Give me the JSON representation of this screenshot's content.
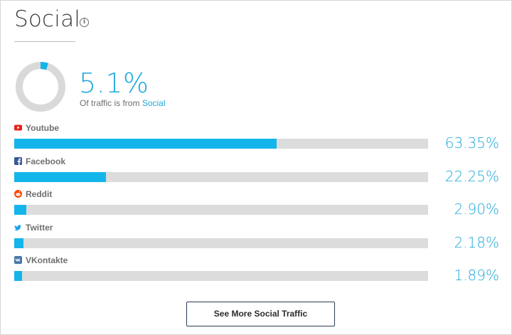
{
  "widget": {
    "title": "Social",
    "info_icon": "info-icon",
    "share": {
      "value_text": "5.1%",
      "fraction": 0.051,
      "caption_prefix": "Of traffic is from",
      "caption_link": "Social"
    },
    "colors": {
      "accent": "#1fa9dc",
      "bar": "#14b5ea",
      "track": "#dcdcdc"
    },
    "channels": [
      {
        "name": "Youtube",
        "icon": "youtube-icon",
        "icon_color": "#e62117",
        "percent_text": "63.35%",
        "fraction": 0.6335
      },
      {
        "name": "Facebook",
        "icon": "facebook-icon",
        "icon_color": "#3b5998",
        "percent_text": "22.25%",
        "fraction": 0.2225
      },
      {
        "name": "Reddit",
        "icon": "reddit-icon",
        "icon_color": "#ff4500",
        "percent_text": "2.90%",
        "fraction": 0.029
      },
      {
        "name": "Twitter",
        "icon": "twitter-icon",
        "icon_color": "#1da1f2",
        "percent_text": "2.18%",
        "fraction": 0.0218
      },
      {
        "name": "VKontakte",
        "icon": "vkontakte-icon",
        "icon_color": "#4a76a8",
        "percent_text": "1.89%",
        "fraction": 0.0189
      }
    ],
    "more_button": "See More Social Traffic"
  }
}
